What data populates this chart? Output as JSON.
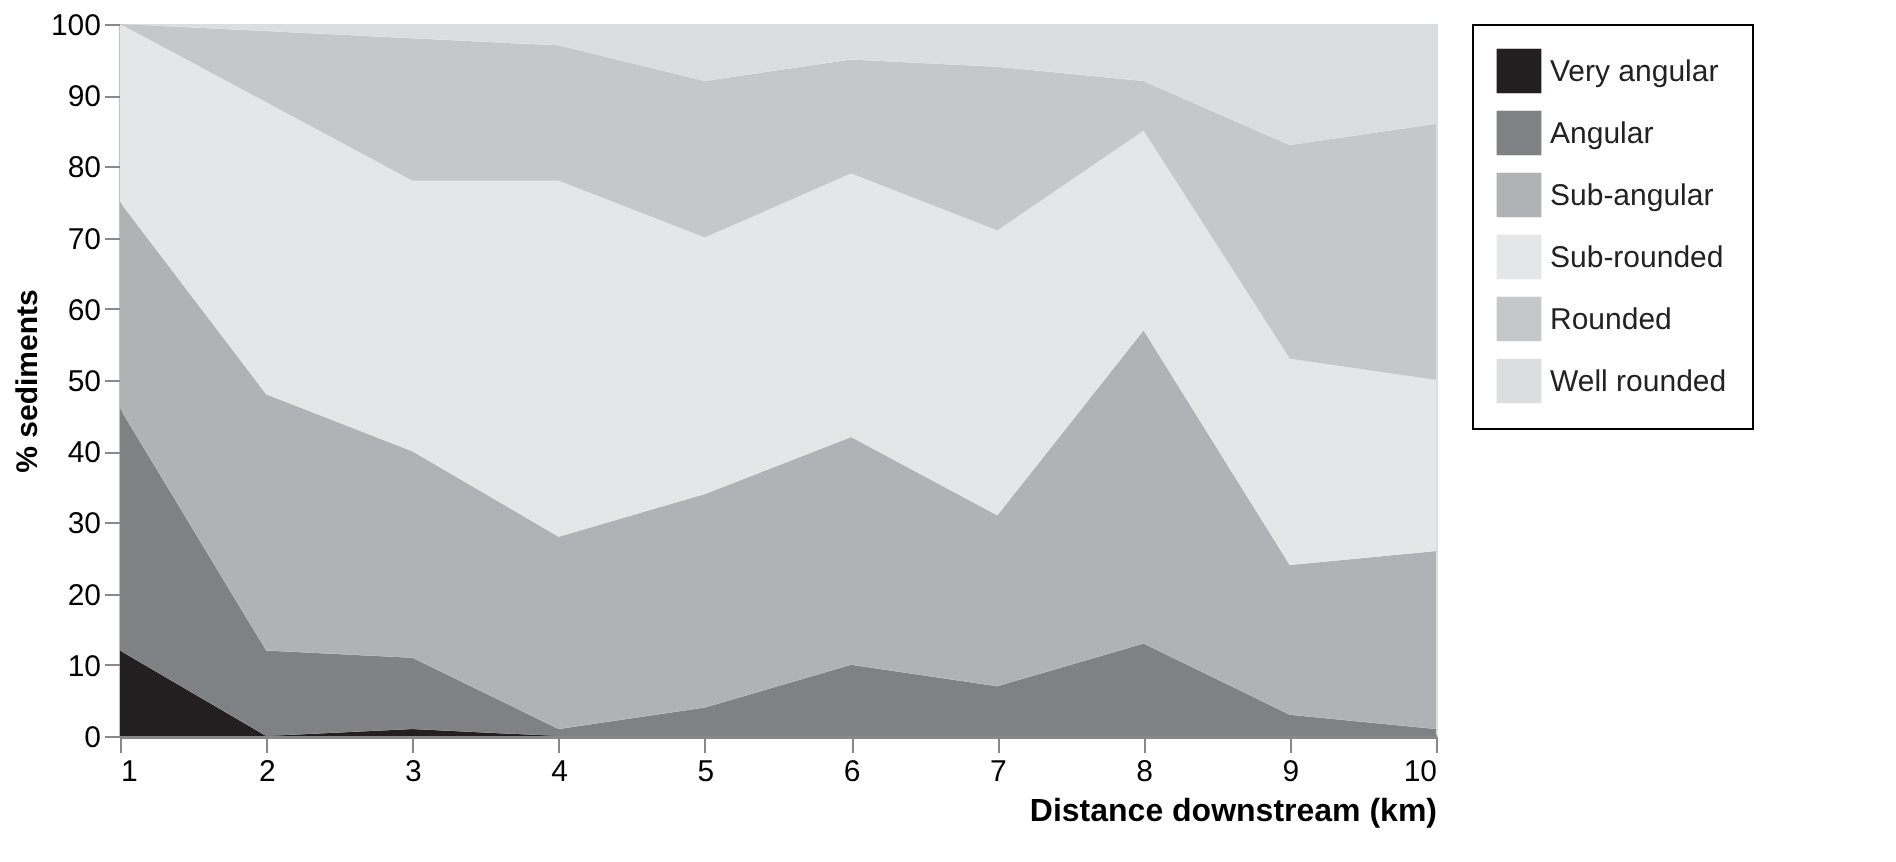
{
  "chart_data": {
    "type": "area",
    "stacked": true,
    "xlabel": "Distance downstream (km)",
    "ylabel": "% sediments",
    "x": [
      1,
      2,
      3,
      4,
      5,
      6,
      7,
      8,
      9,
      10
    ],
    "xlim": [
      1,
      10
    ],
    "xticks": [
      1,
      2,
      3,
      4,
      5,
      6,
      7,
      8,
      9,
      10
    ],
    "ylim": [
      0,
      100
    ],
    "yticks": [
      0,
      10,
      20,
      30,
      40,
      50,
      60,
      70,
      80,
      90,
      100
    ],
    "grid": false,
    "legend": "top right",
    "series": [
      {
        "name": "Very angular",
        "color": "#231f20",
        "values": [
          12,
          0,
          1,
          0,
          0,
          0,
          0,
          0,
          0,
          0
        ]
      },
      {
        "name": "Angular",
        "color": "#808184",
        "values": [
          34,
          12,
          10,
          1,
          4,
          10,
          7,
          13,
          3,
          1
        ]
      },
      {
        "name": "Sub-angular",
        "color": "#b1b2b5",
        "values": [
          29,
          36,
          29,
          27,
          30,
          32,
          24,
          44,
          21,
          25
        ]
      },
      {
        "name": "Sub-rounded",
        "color": "#e5e6e8",
        "values": [
          25,
          41,
          38,
          50,
          36,
          37,
          40,
          28,
          29,
          24
        ]
      },
      {
        "name": "Rounded",
        "color": "#c6c7c9",
        "values": [
          0,
          10,
          20,
          19,
          22,
          16,
          23,
          7,
          30,
          36
        ]
      },
      {
        "name": "Well rounded",
        "color": "#dcdddf",
        "values": [
          0,
          1,
          2,
          3,
          8,
          5,
          6,
          8,
          17,
          14
        ]
      }
    ]
  }
}
